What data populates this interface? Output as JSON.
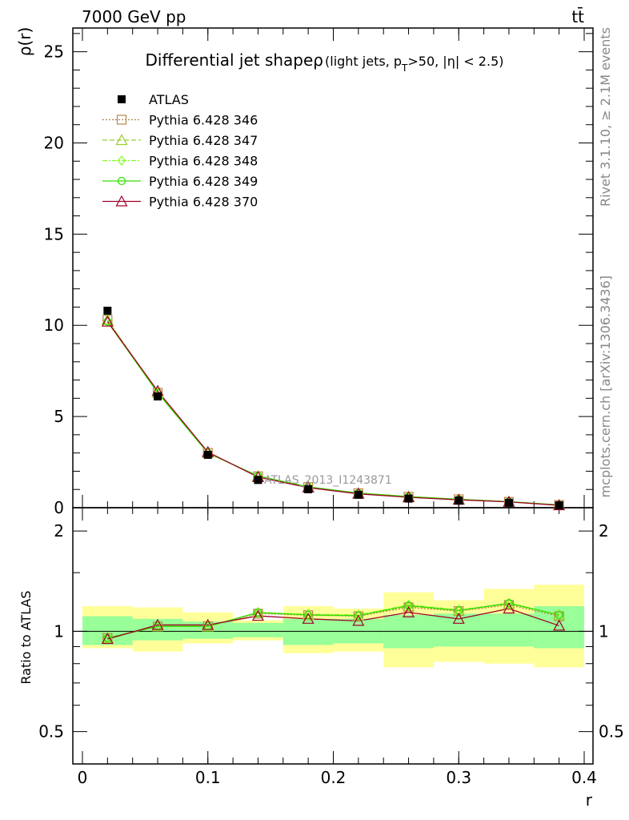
{
  "header": {
    "left": "7000 GeV pp",
    "right": "tt̄"
  },
  "side_labels": {
    "rivet": "Rivet 3.1.10, ≥ 2.1M events",
    "mcplots": "mcplots.cern.ch [arXiv:1306.3436]"
  },
  "watermark": "ATLAS_2013_I1243871",
  "chart_data": {
    "type": "line",
    "title": "Differential jet shapeρ",
    "title_detail": "(light jets, p",
    "title_sub": "T",
    "title_tail": ">50, |η| < 2.5)",
    "xlabel": "r",
    "ylabel": "ρ(r)",
    "ratio_ylabel": "Ratio to ATLAS",
    "xlim": [
      0,
      0.4
    ],
    "ylim": [
      0,
      26.3
    ],
    "ratio_ylim": [
      0.4,
      2.35
    ],
    "ratio_scale": "log",
    "x_ticks": [
      "0",
      "0.1",
      "0.2",
      "0.3",
      "0.4"
    ],
    "y_ticks": [
      "0",
      "5",
      "10",
      "15",
      "20",
      "25"
    ],
    "ratio_ticks": [
      "0.5",
      "1",
      "2"
    ],
    "legend_position": "top-left",
    "x": [
      0.02,
      0.06,
      0.1,
      0.14,
      0.18,
      0.22,
      0.26,
      0.3,
      0.34,
      0.38
    ],
    "bin_edges": [
      0.0,
      0.04,
      0.08,
      0.12,
      0.16,
      0.2,
      0.24,
      0.28,
      0.32,
      0.36,
      0.4
    ],
    "data": {
      "name": "ATLAS",
      "values": [
        10.8,
        6.1,
        2.9,
        1.52,
        1.01,
        0.71,
        0.5,
        0.39,
        0.27,
        0.13
      ],
      "band_inner": [
        [
          0.91,
          1.11
        ],
        [
          0.94,
          1.09
        ],
        [
          0.95,
          1.07
        ],
        [
          0.96,
          1.06
        ],
        [
          0.91,
          1.09
        ],
        [
          0.92,
          1.09
        ],
        [
          0.89,
          1.12
        ],
        [
          0.9,
          1.13
        ],
        [
          0.9,
          1.13
        ],
        [
          0.89,
          1.19
        ]
      ],
      "band_outer": [
        [
          0.89,
          1.19
        ],
        [
          0.87,
          1.18
        ],
        [
          0.92,
          1.14
        ],
        [
          0.94,
          1.08
        ],
        [
          0.86,
          1.19
        ],
        [
          0.87,
          1.17
        ],
        [
          0.78,
          1.31
        ],
        [
          0.81,
          1.24
        ],
        [
          0.8,
          1.34
        ],
        [
          0.78,
          1.38
        ]
      ]
    },
    "series": [
      {
        "name": "Pythia 6.428 346",
        "color": "#b8864a",
        "dash": "2,2",
        "marker": "square",
        "values": [
          10.3,
          6.3,
          3.0,
          1.72,
          1.13,
          0.79,
          0.6,
          0.46,
          0.32,
          0.15
        ],
        "ratio": [
          0.955,
          1.034,
          1.036,
          1.13,
          1.118,
          1.11,
          1.18,
          1.15,
          1.2,
          1.11
        ]
      },
      {
        "name": "Pythia 6.428 347",
        "color": "#9acd32",
        "dash": "6,3",
        "marker": "triangle",
        "values": [
          10.3,
          6.3,
          3.0,
          1.73,
          1.13,
          0.8,
          0.61,
          0.46,
          0.33,
          0.15
        ],
        "ratio": [
          0.955,
          1.036,
          1.034,
          1.135,
          1.12,
          1.115,
          1.19,
          1.155,
          1.21,
          1.12
        ]
      },
      {
        "name": "Pythia 6.428 348",
        "color": "#80ff20",
        "dash": "6,2,2,2",
        "marker": "diamond",
        "values": [
          10.2,
          6.3,
          3.0,
          1.74,
          1.14,
          0.8,
          0.61,
          0.46,
          0.33,
          0.15
        ],
        "ratio": [
          0.955,
          1.036,
          1.035,
          1.14,
          1.125,
          1.12,
          1.2,
          1.16,
          1.21,
          1.12
        ]
      },
      {
        "name": "Pythia 6.428 349",
        "color": "#33dd00",
        "dash": "",
        "marker": "circle",
        "values": [
          10.2,
          6.3,
          3.0,
          1.74,
          1.14,
          0.8,
          0.61,
          0.46,
          0.33,
          0.15
        ],
        "ratio": [
          0.955,
          1.035,
          1.035,
          1.14,
          1.12,
          1.115,
          1.195,
          1.155,
          1.215,
          1.12
        ]
      },
      {
        "name": "Pythia 6.428 370",
        "color": "#a00028",
        "dash": "",
        "marker": "triangle",
        "values": [
          10.2,
          6.4,
          3.05,
          1.68,
          1.1,
          0.76,
          0.57,
          0.43,
          0.32,
          0.13
        ],
        "ratio": [
          0.948,
          1.045,
          1.045,
          1.113,
          1.09,
          1.075,
          1.14,
          1.09,
          1.17,
          1.04
        ]
      }
    ]
  }
}
